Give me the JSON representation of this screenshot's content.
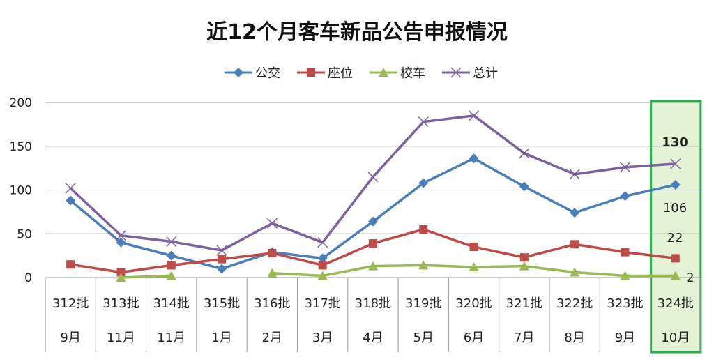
{
  "chart_data": {
    "type": "line",
    "title": "近12个月客车新品公告申报情况",
    "categories": [
      "312批",
      "313批",
      "314批",
      "315批",
      "316批",
      "317批",
      "318批",
      "319批",
      "320批",
      "321批",
      "322批",
      "323批",
      "324批"
    ],
    "months": [
      "9月",
      "11月",
      "11月",
      "1月",
      "2月",
      "3月",
      "4月",
      "5月",
      "6月",
      "7月",
      "8月",
      "9月",
      "10月"
    ],
    "ylim": [
      0,
      200
    ],
    "yticks": [
      "0",
      "50",
      "100",
      "150",
      "200"
    ],
    "grid": true,
    "legend_position": "top",
    "series": [
      {
        "name": "公交",
        "color": "#4a7ebb",
        "marker": "diamond",
        "values": [
          88,
          40,
          25,
          10,
          29,
          22,
          64,
          108,
          136,
          104,
          74,
          93,
          106
        ]
      },
      {
        "name": "座位",
        "color": "#be4b48",
        "marker": "square",
        "values": [
          15,
          6,
          14,
          21,
          28,
          14,
          39,
          55,
          35,
          23,
          38,
          29,
          22
        ]
      },
      {
        "name": "校车",
        "color": "#98b954",
        "marker": "triangle",
        "values": [
          null,
          0,
          2,
          null,
          5,
          2,
          13,
          14,
          12,
          13,
          6,
          2,
          2
        ]
      },
      {
        "name": "总计",
        "color": "#7d60a0",
        "marker": "x",
        "values": [
          102,
          48,
          41,
          31,
          62,
          40,
          115,
          178,
          185,
          142,
          118,
          126,
          130
        ]
      }
    ],
    "annotations": [
      {
        "category": "324批",
        "series": "总计",
        "text": "130"
      },
      {
        "category": "324批",
        "series": "公交",
        "text": "106"
      },
      {
        "category": "324批",
        "series": "座位",
        "text": "22"
      },
      {
        "category": "324批",
        "series": "校车",
        "text": "2"
      }
    ],
    "highlight": {
      "category": "324批",
      "border": "#1fb04a",
      "fill": "#e4f2d6"
    }
  }
}
